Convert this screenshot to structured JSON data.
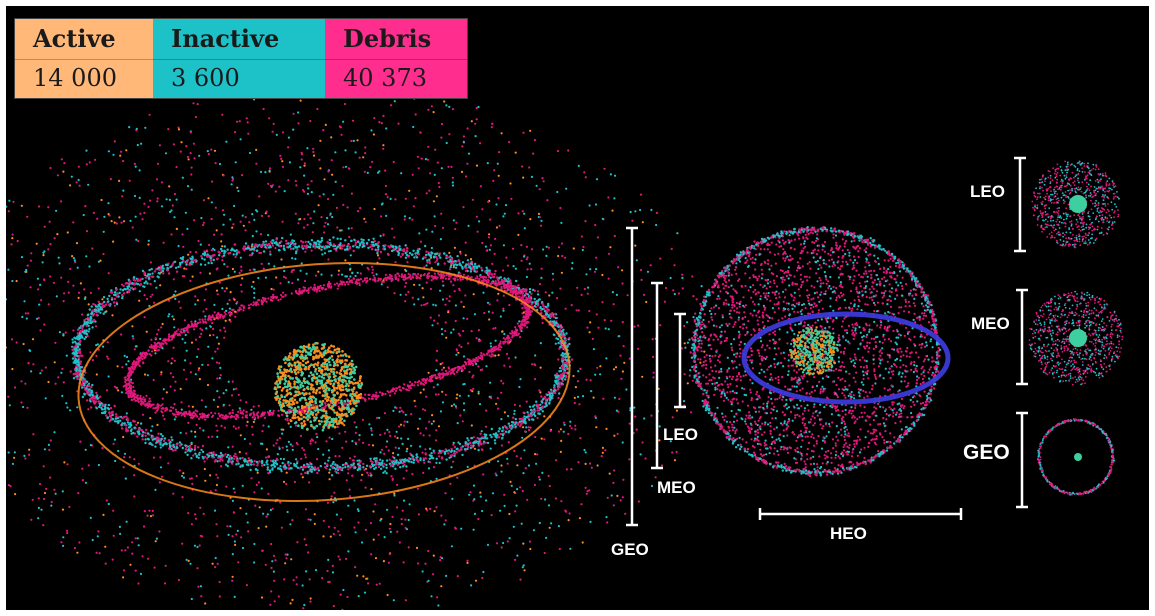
{
  "legend": {
    "active": {
      "label": "Active",
      "value": "14 000",
      "color": "#FFB877"
    },
    "inactive": {
      "label": "Inactive",
      "value": "3 600",
      "color": "#1DC2C8"
    },
    "debris": {
      "label": "Debris",
      "value": "40 373",
      "color": "#FF2E8E"
    }
  },
  "orbit_labels": {
    "geo": "GEO",
    "meo": "MEO",
    "leo": "LEO",
    "heo": "HEO"
  },
  "panel_labels": {
    "leo": "LEO",
    "meo": "MEO",
    "geo": "GEO"
  },
  "colors": {
    "background": "#000000",
    "active": "#FF8C1A",
    "inactive": "#1DC2C8",
    "debris": "#E0177A",
    "heo_ring": "#3A3AD8",
    "earth": "#3ECFA0"
  }
}
